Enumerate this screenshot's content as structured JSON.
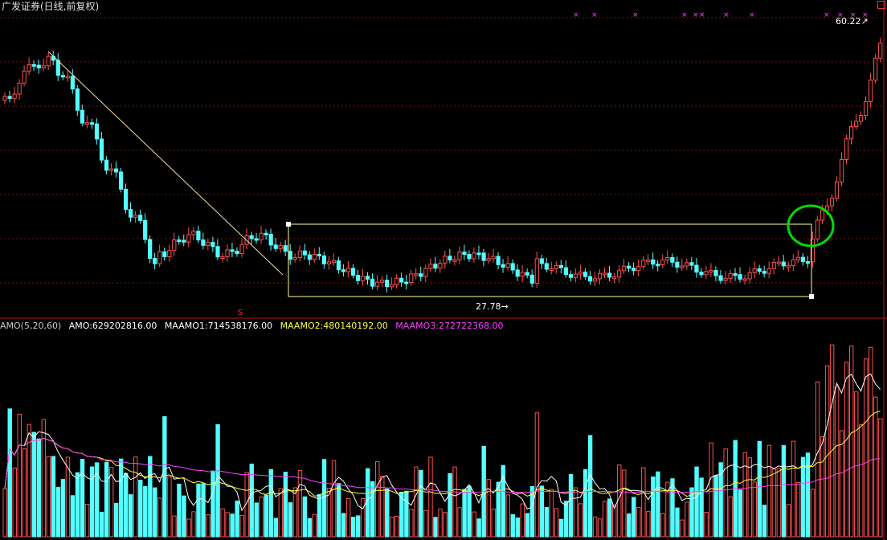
{
  "window": {
    "title": "广发证券(日线,前复权)"
  },
  "indicator_bar": {
    "name": "AMO(5,20,60)",
    "amo": "AMO:629202816.00",
    "maamo1": "MAAMO1:714538176.00",
    "maamo2": "MAAMO2:480140192.00",
    "maamo3": "MAAMO3:272722368.00"
  },
  "annotations": {
    "low_label": "27.78",
    "high_label": "60.22",
    "low_arrow": "→",
    "high_arrow": "↗"
  },
  "colors": {
    "up": "#ff5050",
    "down": "#54ffff",
    "grid": "#7a1010",
    "maamo1": "#ffffff",
    "maamo2": "#ffff40",
    "maamo3": "#ff40ff",
    "box": "#ffff99",
    "highlight_circle": "#00dd00"
  },
  "chart_data": [
    {
      "type": "candlestick",
      "title": "广发证券(日线,前复权)",
      "price_range": [
        27.78,
        60.22
      ],
      "series": [
        {
          "name": "price",
          "trend_segments": [
            {
              "phase": "decline",
              "from_index": 0,
              "to_index": 30
            },
            {
              "phase": "range",
              "from_index": 31,
              "to_index": 163
            },
            {
              "phase": "breakout",
              "from_index": 164,
              "to_index": 181
            }
          ]
        }
      ],
      "annotated_low": 27.78,
      "annotated_high": 60.22
    },
    {
      "type": "bar",
      "title": "AMO(5,20,60)",
      "series": [
        {
          "name": "AMO",
          "last": 629202816.0
        },
        {
          "name": "MAAMO1",
          "last": 714538176.0
        },
        {
          "name": "MAAMO2",
          "last": 480140192.0
        },
        {
          "name": "MAAMO3",
          "last": 272722368.0
        }
      ]
    }
  ]
}
